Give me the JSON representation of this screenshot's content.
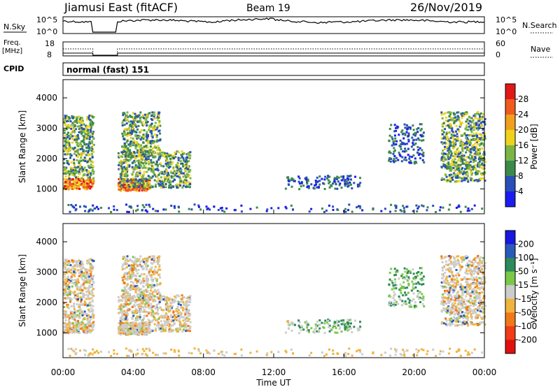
{
  "header": {
    "station": "Jiamusi East (fitACF)",
    "beam": "Beam 19",
    "date": "26/Nov/2019"
  },
  "left_labels": {
    "nsky": "N.Sky",
    "freq_line1": "Freq.",
    "freq_line2": "[MHz]",
    "cpid": "CPID"
  },
  "right_labels": {
    "nsearch": "N.Search",
    "nave": "Nave"
  },
  "noise_axis": {
    "left_top": "10^5",
    "left_bottom": "10^0",
    "right_top": "10^5",
    "right_bottom": "10^0"
  },
  "freq_axis": {
    "left_top": "18",
    "left_bottom": "8",
    "right_top": "60",
    "right_bottom": "0"
  },
  "cpid_text": "normal (fast) 151",
  "xaxis": {
    "label": "Time UT",
    "ticks": [
      "00:00",
      "04:00",
      "08:00",
      "12:00",
      "16:00",
      "20:00",
      "00:00"
    ]
  },
  "colors": {
    "power": [
      "#1c1cf0",
      "#2a4fb8",
      "#3b8a4a",
      "#7ab548",
      "#f0d21c",
      "#f0a01c",
      "#f05a1c",
      "#e01818"
    ],
    "velocity": [
      "#1818e0",
      "#2a5ab8",
      "#2d8a5a",
      "#7ac848",
      "#cccccc",
      "#f0b43c",
      "#f07818",
      "#f03c18",
      "#e01010"
    ]
  },
  "chart_data": [
    {
      "type": "heatmap",
      "name": "power",
      "ylabel": "Slant Range [km]",
      "xlim": [
        0,
        24
      ],
      "ylim": [
        180,
        4600
      ],
      "yticks": [
        "1000",
        "2000",
        "3000",
        "4000"
      ],
      "colorbar": {
        "label": "Power [dB]",
        "ticks": [
          "4",
          "8",
          "12",
          "16",
          "20",
          "24",
          "28"
        ],
        "range": [
          0,
          32
        ]
      },
      "scatter_regions_hours_km": [
        {
          "t": [
            0.0,
            1.7
          ],
          "r": [
            950,
            1300
          ],
          "level": "high"
        },
        {
          "t": [
            0.0,
            1.7
          ],
          "r": [
            1300,
            3400
          ],
          "level": "mid"
        },
        {
          "t": [
            3.1,
            4.9
          ],
          "r": [
            900,
            1300
          ],
          "level": "high"
        },
        {
          "t": [
            3.1,
            7.2
          ],
          "r": [
            1000,
            2200
          ],
          "level": "mid"
        },
        {
          "t": [
            3.3,
            5.5
          ],
          "r": [
            2000,
            3500
          ],
          "level": "mid"
        },
        {
          "t": [
            12.5,
            17.0
          ],
          "r": [
            950,
            1400
          ],
          "level": "low"
        },
        {
          "t": [
            18.5,
            20.5
          ],
          "r": [
            1800,
            3100
          ],
          "level": "low"
        },
        {
          "t": [
            21.5,
            24.0
          ],
          "r": [
            1200,
            3500
          ],
          "level": "mid"
        }
      ]
    },
    {
      "type": "heatmap",
      "name": "velocity",
      "ylabel": "Slant Range [km]",
      "xlim": [
        0,
        24
      ],
      "ylim": [
        180,
        4600
      ],
      "yticks": [
        "1000",
        "2000",
        "3000",
        "4000"
      ],
      "colorbar": {
        "label": "Velocity [m s⁻¹]",
        "ticks": [
          "200",
          "100",
          "50",
          "15",
          "-15",
          "-50",
          "-100",
          "-200"
        ],
        "range": [
          -250,
          250
        ]
      }
    }
  ],
  "nave_series": {
    "gaps_hours": [
      [
        1.7,
        3.1
      ]
    ]
  }
}
